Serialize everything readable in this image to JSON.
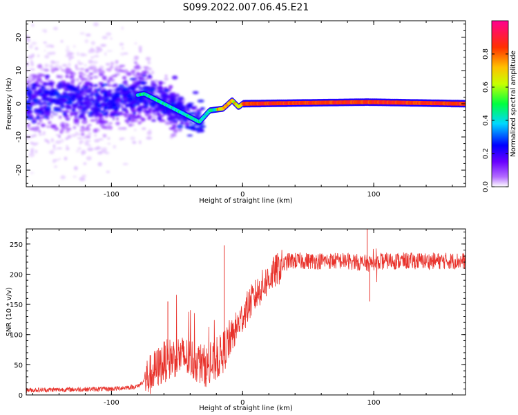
{
  "title": "S099.2022.007.06.45.E21",
  "chart_data": [
    {
      "type": "heatmap",
      "xlabel": "Height of straight line (km)",
      "ylabel": "Frequency (Hz)",
      "xlim": [
        -165,
        170
      ],
      "ylim": [
        -25,
        25
      ],
      "x_ticks": [
        -100,
        0,
        100
      ],
      "y_ticks": [
        -20,
        -10,
        0,
        10,
        20
      ],
      "colorbar": {
        "label": "Normalized spectral amplitude",
        "range": [
          0,
          1
        ],
        "ticks": [
          0.0,
          0.2,
          0.4,
          0.6,
          0.8
        ],
        "tick_labels": [
          "0.0",
          "0.2",
          "0.4",
          "0.6",
          "0.8"
        ],
        "colors": [
          "#ffffff",
          "#8a00ff",
          "#0000ff",
          "#00e0ff",
          "#00ff00",
          "#ffff00",
          "#ff7f00",
          "#ff0000",
          "#ff00a0"
        ]
      },
      "ridge": {
        "description_points": [
          {
            "x": -165,
            "y": 1
          },
          {
            "x": -100,
            "y": 1
          },
          {
            "x": -75,
            "y": 3
          },
          {
            "x": -60,
            "y": 0
          },
          {
            "x": -45,
            "y": -3
          },
          {
            "x": -33,
            "y": -5.5
          },
          {
            "x": -25,
            "y": -2
          },
          {
            "x": -15,
            "y": -1.5
          },
          {
            "x": -8,
            "y": 1
          },
          {
            "x": -3,
            "y": -1
          },
          {
            "x": 0,
            "y": 0
          },
          {
            "x": 95,
            "y": 0.5
          },
          {
            "x": 170,
            "y": 0
          }
        ]
      },
      "grid": false
    },
    {
      "type": "line",
      "xlabel": "Height of straight line (km)",
      "ylabel": "SNR (10 * v/v)",
      "xlim": [
        -165,
        170
      ],
      "ylim": [
        0,
        275
      ],
      "x_ticks": [
        -100,
        0,
        100
      ],
      "y_ticks": [
        0,
        50,
        100,
        150,
        200,
        250
      ],
      "line_color": "#e8312a",
      "series_envelope": [
        {
          "x": -165,
          "y": 8
        },
        {
          "x": -100,
          "y": 10
        },
        {
          "x": -80,
          "y": 14
        },
        {
          "x": -72,
          "y": 30
        },
        {
          "x": -60,
          "y": 55
        },
        {
          "x": -50,
          "y": 65
        },
        {
          "x": -40,
          "y": 60
        },
        {
          "x": -25,
          "y": 45
        },
        {
          "x": -15,
          "y": 70
        },
        {
          "x": -5,
          "y": 110
        },
        {
          "x": 5,
          "y": 150
        },
        {
          "x": 15,
          "y": 180
        },
        {
          "x": 25,
          "y": 205
        },
        {
          "x": 35,
          "y": 222
        },
        {
          "x": 50,
          "y": 222
        },
        {
          "x": 80,
          "y": 222
        },
        {
          "x": 95,
          "y": 218
        },
        {
          "x": 110,
          "y": 222
        },
        {
          "x": 170,
          "y": 222
        }
      ],
      "peaks": [
        {
          "x": -57,
          "y": 155
        },
        {
          "x": -14,
          "y": 248
        },
        {
          "x": 95,
          "y": 275
        },
        {
          "x": 97,
          "y": 155
        }
      ],
      "grid": false
    }
  ]
}
